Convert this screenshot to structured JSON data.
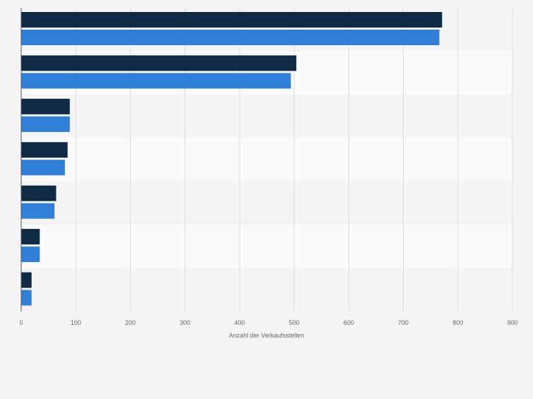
{
  "chart_data": {
    "type": "bar",
    "orientation": "horizontal",
    "categories": [
      "",
      "",
      "",
      "",
      "",
      "",
      ""
    ],
    "series": [
      {
        "color": "#0f2a44",
        "values": [
          771,
          504,
          89,
          85,
          64,
          34,
          19
        ]
      },
      {
        "color": "#2f7ed8",
        "values": [
          766,
          494,
          89,
          80,
          61,
          34,
          19
        ]
      }
    ],
    "xlabel": "Anzahl der Verkaufsstellen",
    "ylabel": "",
    "title": "",
    "xlim": [
      0,
      900
    ],
    "xticks": [
      "0",
      "100",
      "200",
      "300",
      "400",
      "500",
      "600",
      "700",
      "800",
      "900"
    ],
    "grid": true,
    "legend": "none"
  }
}
